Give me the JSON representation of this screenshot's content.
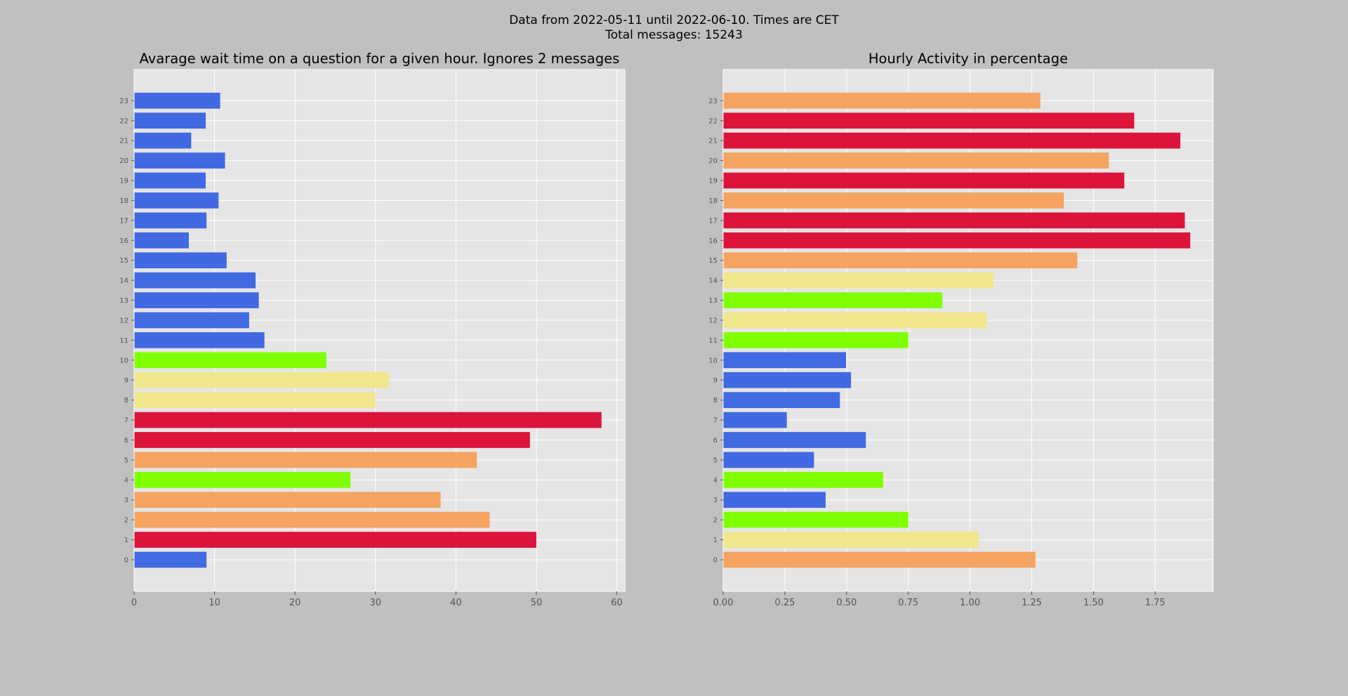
{
  "figure": {
    "suptitle_line1": "Data from 2022-05-11 until 2022-06-10. Times are CET",
    "suptitle_line2": "Total messages: 15243"
  },
  "colors": {
    "figure_bg": "#c0c0c0",
    "axes_bg": "#e5e5e5",
    "grid": "#ffffff",
    "tick_text": "#555555",
    "title_text": "#000000",
    "blue": "#4169e1",
    "lime": "#7fff00",
    "khaki": "#f0e68c",
    "orange": "#f4a460",
    "red": "#dc143c"
  },
  "chart_data": [
    {
      "type": "bar",
      "orientation": "horizontal",
      "title": "Avarage wait time on a question for a given hour. Ignores 2 messages",
      "categories": [
        "0",
        "1",
        "2",
        "3",
        "4",
        "5",
        "6",
        "7",
        "8",
        "9",
        "10",
        "11",
        "12",
        "13",
        "14",
        "15",
        "16",
        "17",
        "18",
        "19",
        "20",
        "21",
        "22",
        "23"
      ],
      "values": [
        9.0,
        50.0,
        44.2,
        38.1,
        26.9,
        42.6,
        49.2,
        58.1,
        30.0,
        31.7,
        23.9,
        16.2,
        14.3,
        15.5,
        15.1,
        11.5,
        6.8,
        9.0,
        10.5,
        8.9,
        11.3,
        7.1,
        8.9,
        10.7
      ],
      "bar_colors": [
        "blue",
        "red",
        "orange",
        "orange",
        "lime",
        "orange",
        "red",
        "red",
        "khaki",
        "khaki",
        "lime",
        "blue",
        "blue",
        "blue",
        "blue",
        "blue",
        "blue",
        "blue",
        "blue",
        "blue",
        "blue",
        "blue",
        "blue",
        "blue"
      ],
      "xlim": [
        0,
        61
      ],
      "xticks": [
        0,
        10,
        20,
        30,
        40,
        50,
        60
      ],
      "xtick_labels": [
        "0",
        "10",
        "20",
        "30",
        "40",
        "50",
        "60"
      ],
      "grid": true
    },
    {
      "type": "bar",
      "orientation": "horizontal",
      "title": "Hourly Activity in percentage",
      "categories": [
        "0",
        "1",
        "2",
        "3",
        "4",
        "5",
        "6",
        "7",
        "8",
        "9",
        "10",
        "11",
        "12",
        "13",
        "14",
        "15",
        "16",
        "17",
        "18",
        "19",
        "20",
        "21",
        "22",
        "23"
      ],
      "values": [
        1.265,
        1.035,
        0.75,
        0.415,
        0.648,
        0.368,
        0.578,
        0.258,
        0.473,
        0.518,
        0.498,
        0.75,
        1.068,
        0.888,
        1.095,
        1.435,
        1.892,
        1.87,
        1.38,
        1.625,
        1.562,
        1.852,
        1.665,
        1.285
      ],
      "bar_colors": [
        "orange",
        "khaki",
        "lime",
        "blue",
        "lime",
        "blue",
        "blue",
        "blue",
        "blue",
        "blue",
        "blue",
        "lime",
        "khaki",
        "lime",
        "khaki",
        "orange",
        "red",
        "red",
        "orange",
        "red",
        "orange",
        "red",
        "red",
        "orange"
      ],
      "xlim": [
        0,
        1.985
      ],
      "xticks": [
        0,
        0.25,
        0.5,
        0.75,
        1.0,
        1.25,
        1.5,
        1.75
      ],
      "xtick_labels": [
        "0.00",
        "0.25",
        "0.50",
        "0.75",
        "1.00",
        "1.25",
        "1.50",
        "1.75"
      ],
      "grid": true
    }
  ]
}
